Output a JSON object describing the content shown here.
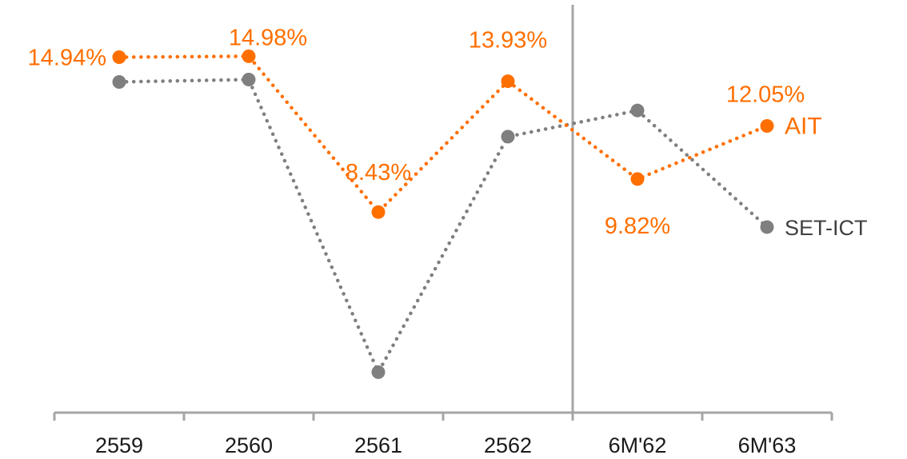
{
  "chart_data": {
    "type": "line",
    "title": "",
    "xlabel": "",
    "ylabel": "",
    "categories": [
      "2559",
      "2560",
      "2561",
      "2562",
      "6M'62",
      "6M'63"
    ],
    "ylim": [
      0,
      16
    ],
    "grid": false,
    "legend": "inline-right",
    "divider_after_category": "2562",
    "series": [
      {
        "name": "AIT",
        "color": "#FF6F00",
        "values": [
          14.94,
          14.98,
          8.43,
          13.93,
          9.82,
          12.05
        ],
        "labels": [
          "14.94%",
          "14.98%",
          "8.43%",
          "13.93%",
          "9.82%",
          "12.05%"
        ]
      },
      {
        "name": "SET-ICT",
        "color": "#7F7F7F",
        "values": [
          13.9,
          14.0,
          1.7,
          11.6,
          12.7,
          7.8
        ],
        "labels": []
      }
    ]
  }
}
